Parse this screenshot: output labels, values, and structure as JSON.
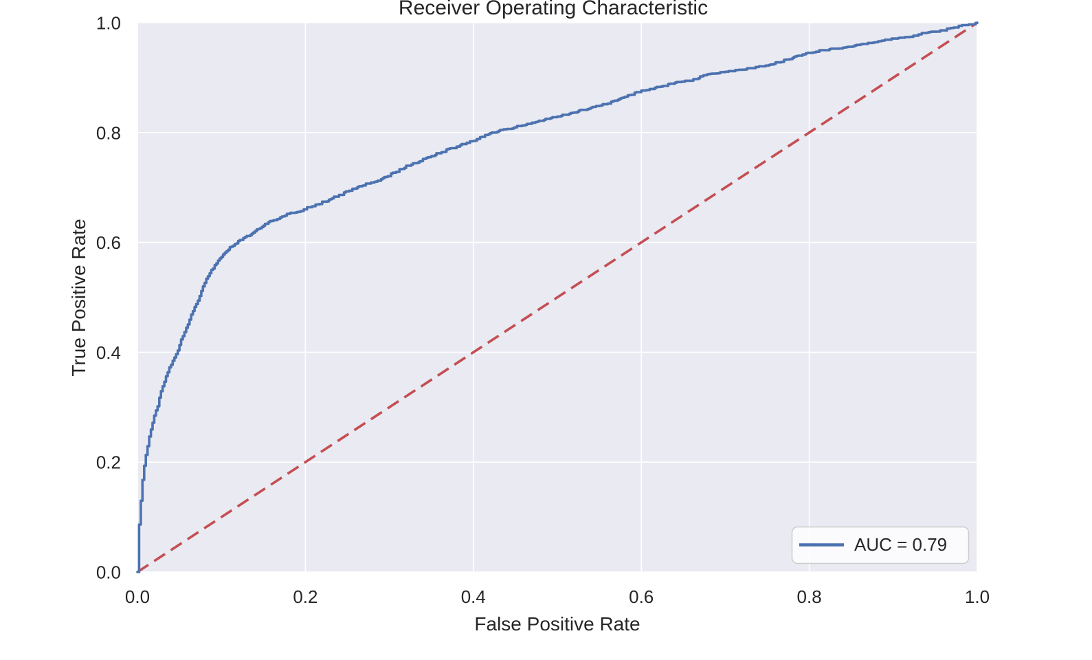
{
  "figure": {
    "background": "#ffffff"
  },
  "chart_data": {
    "type": "line",
    "title": "Receiver Operating Characteristic",
    "xlabel": "False Positive Rate",
    "ylabel": "True Positive Rate",
    "xlim": [
      0.0,
      1.0
    ],
    "ylim": [
      0.0,
      1.0
    ],
    "grid": true,
    "xticks": [
      0.0,
      0.2,
      0.4,
      0.6,
      0.8,
      1.0
    ],
    "yticks": [
      0.0,
      0.2,
      0.4,
      0.6,
      0.8,
      1.0
    ],
    "xtick_labels": [
      "0.0",
      "0.2",
      "0.4",
      "0.6",
      "0.8",
      "1.0"
    ],
    "ytick_labels": [
      "0.0",
      "0.2",
      "0.4",
      "0.6",
      "0.8",
      "1.0"
    ],
    "auc": 0.79,
    "legend": {
      "position": "lower right",
      "entries": [
        {
          "label": "AUC = 0.79",
          "color": "#4c72b0",
          "style": "solid"
        }
      ]
    },
    "colors": {
      "plot_background": "#eaeaf2",
      "gridline": "#ffffff",
      "text": "#262626",
      "roc_line": "#4c72b0",
      "chance_line": "#c44e52",
      "legend_border": "#cccccc",
      "legend_background": "#ffffff"
    },
    "series": [
      {
        "name": "ROC curve",
        "style": "solid",
        "color": "#4c72b0",
        "points_format": [
          "fpr",
          "tpr"
        ],
        "points": [
          [
            0.0,
            0.0
          ],
          [
            0.001,
            0.05
          ],
          [
            0.002,
            0.09
          ],
          [
            0.004,
            0.13
          ],
          [
            0.006,
            0.17
          ],
          [
            0.008,
            0.195
          ],
          [
            0.01,
            0.215
          ],
          [
            0.013,
            0.24
          ],
          [
            0.016,
            0.262
          ],
          [
            0.02,
            0.285
          ],
          [
            0.024,
            0.305
          ],
          [
            0.028,
            0.33
          ],
          [
            0.032,
            0.35
          ],
          [
            0.038,
            0.374
          ],
          [
            0.043,
            0.39
          ],
          [
            0.047,
            0.402
          ],
          [
            0.053,
            0.43
          ],
          [
            0.058,
            0.447
          ],
          [
            0.064,
            0.47
          ],
          [
            0.07,
            0.49
          ],
          [
            0.075,
            0.51
          ],
          [
            0.08,
            0.528
          ],
          [
            0.086,
            0.547
          ],
          [
            0.093,
            0.562
          ],
          [
            0.1,
            0.575
          ],
          [
            0.108,
            0.589
          ],
          [
            0.116,
            0.6
          ],
          [
            0.126,
            0.608
          ],
          [
            0.135,
            0.617
          ],
          [
            0.144,
            0.628
          ],
          [
            0.155,
            0.637
          ],
          [
            0.17,
            0.648
          ],
          [
            0.185,
            0.656
          ],
          [
            0.2,
            0.663
          ],
          [
            0.215,
            0.672
          ],
          [
            0.23,
            0.681
          ],
          [
            0.25,
            0.694
          ],
          [
            0.27,
            0.707
          ],
          [
            0.285,
            0.712
          ],
          [
            0.3,
            0.724
          ],
          [
            0.32,
            0.74
          ],
          [
            0.34,
            0.752
          ],
          [
            0.36,
            0.765
          ],
          [
            0.38,
            0.776
          ],
          [
            0.4,
            0.787
          ],
          [
            0.42,
            0.8
          ],
          [
            0.44,
            0.808
          ],
          [
            0.46,
            0.815
          ],
          [
            0.475,
            0.822
          ],
          [
            0.5,
            0.83
          ],
          [
            0.52,
            0.838
          ],
          [
            0.54,
            0.847
          ],
          [
            0.556,
            0.853
          ],
          [
            0.58,
            0.866
          ],
          [
            0.6,
            0.877
          ],
          [
            0.62,
            0.884
          ],
          [
            0.638,
            0.891
          ],
          [
            0.66,
            0.898
          ],
          [
            0.682,
            0.908
          ],
          [
            0.7,
            0.912
          ],
          [
            0.72,
            0.916
          ],
          [
            0.745,
            0.922
          ],
          [
            0.76,
            0.928
          ],
          [
            0.78,
            0.938
          ],
          [
            0.8,
            0.947
          ],
          [
            0.82,
            0.952
          ],
          [
            0.85,
            0.958
          ],
          [
            0.88,
            0.966
          ],
          [
            0.9,
            0.972
          ],
          [
            0.92,
            0.977
          ],
          [
            0.94,
            0.983
          ],
          [
            0.96,
            0.988
          ],
          [
            0.975,
            0.993
          ],
          [
            0.985,
            0.998
          ],
          [
            1.0,
            1.0
          ]
        ]
      },
      {
        "name": "chance line",
        "style": "dashed",
        "color": "#c44e52",
        "points_format": [
          "fpr",
          "tpr"
        ],
        "points": [
          [
            0.0,
            0.0
          ],
          [
            1.0,
            1.0
          ]
        ]
      }
    ]
  }
}
